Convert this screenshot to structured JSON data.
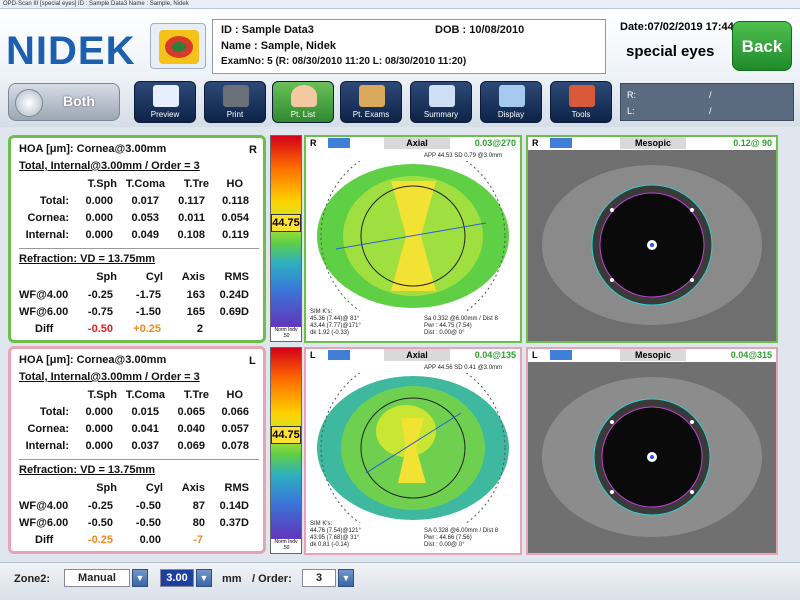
{
  "window": {
    "title": "OPD-Scan III [special eyes] ID : Sample Data3  Name : Sample, Nidek"
  },
  "header": {
    "logo": "NIDEK",
    "id": "ID : Sample Data3",
    "dob": "DOB : 10/08/2010",
    "name": "Name : Sample,  Nidek",
    "exam": "ExamNo: 5 (R: 08/30/2010 11:20  L: 08/30/2010 11:20)",
    "date": "Date:07/02/2019 17:44",
    "mode": "special eyes",
    "back_label": "Back"
  },
  "toolbar": {
    "both_label": "Both",
    "buttons": [
      "Preview",
      "Print",
      "Pt. List",
      "Pt. Exams",
      "Summary",
      "Display",
      "Tools"
    ],
    "r_label": "R:",
    "r_value": "/",
    "l_label": "L:",
    "l_value": "/"
  },
  "right_panel": {
    "title": "HOA [μm]: Cornea@3.00mm",
    "side": "R",
    "subtitle": "Total, Internal@3.00mm / Order = 3",
    "cols": [
      "T.Sph",
      "T.Coma",
      "T.Tre",
      "HO"
    ],
    "rows": [
      {
        "label": "Total:",
        "v": [
          "0.000",
          "0.017",
          "0.117",
          "0.118"
        ]
      },
      {
        "label": "Cornea:",
        "v": [
          "0.000",
          "0.053",
          "0.011",
          "0.054"
        ]
      },
      {
        "label": "Internal:",
        "v": [
          "0.000",
          "0.049",
          "0.108",
          "0.119"
        ]
      }
    ],
    "refraction": "Refraction: VD = 13.75mm",
    "rcols": [
      "Sph",
      "Cyl",
      "Axis",
      "RMS"
    ],
    "rrows": [
      {
        "label": "WF@4.00",
        "v": [
          "-0.25",
          "-1.75",
          "163",
          "0.24D"
        ]
      },
      {
        "label": "WF@6.00",
        "v": [
          "-0.75",
          "-1.50",
          "165",
          "0.69D"
        ]
      }
    ],
    "diff": {
      "label": "Diff",
      "v": [
        "-0.50",
        "+0.25",
        "2"
      ]
    }
  },
  "left_panel": {
    "title": "HOA [μm]: Cornea@3.00mm",
    "side": "L",
    "subtitle": "Total, Internal@3.00mm / Order = 3",
    "cols": [
      "T.Sph",
      "T.Coma",
      "T.Tre",
      "HO"
    ],
    "rows": [
      {
        "label": "Total:",
        "v": [
          "0.000",
          "0.015",
          "0.065",
          "0.066"
        ]
      },
      {
        "label": "Cornea:",
        "v": [
          "0.000",
          "0.041",
          "0.040",
          "0.057"
        ]
      },
      {
        "label": "Internal:",
        "v": [
          "0.000",
          "0.037",
          "0.069",
          "0.078"
        ]
      }
    ],
    "refraction": "Refraction: VD = 13.75mm",
    "rcols": [
      "Sph",
      "Cyl",
      "Axis",
      "RMS"
    ],
    "rrows": [
      {
        "label": "WF@4.00",
        "v": [
          "-0.25",
          "-0.50",
          "87",
          "0.14D"
        ]
      },
      {
        "label": "WF@6.00",
        "v": [
          "-0.50",
          "-0.50",
          "80",
          "0.37D"
        ]
      }
    ],
    "diff": {
      "label": "Diff",
      "v": [
        "-0.25",
        "0.00",
        "-7"
      ]
    }
  },
  "scale": {
    "right_value": "44.75",
    "left_value": "44.75",
    "foot": "Norm Indv .50"
  },
  "maps": {
    "r_axial": {
      "side": "R",
      "title": "Axial",
      "value": "0.03@270",
      "app": "APP 44.53 SD 0.79 @3.0mm",
      "simk1": "SIM K's:",
      "simk2": "45.36 (7.44)@ 81°",
      "simk3": "43.44 (7.77)@171°",
      "simk4": "dk 1.92 (-0.33)",
      "info1": "Sa 0.332 @6.00mm / Dist 8",
      "info2": "Pwr : 44.75 (7.54)",
      "info3": "Dist : 0.00@ 0°"
    },
    "r_mesopic": {
      "side": "R",
      "title": "Mesopic",
      "value": "0.12@ 90"
    },
    "l_axial": {
      "side": "L",
      "title": "Axial",
      "value": "0.04@135",
      "app": "APP 44.56 SD 0.41 @3.0mm",
      "simk1": "SIM K's:",
      "simk2": "44.76 (7.54)@121°",
      "simk3": "43.95 (7.68)@ 31°",
      "simk4": "dk 0.81 (-0.14)",
      "info1": "SA 0.328 @6.00mm / Dist 8",
      "info2": "Pwr : 44.66 (7.56)",
      "info3": "Dist : 0.00@ 0°"
    },
    "l_mesopic": {
      "side": "L",
      "title": "Mesopic",
      "value": "0.04@315"
    }
  },
  "footer": {
    "zone_label": "Zone2:",
    "zone_value": "Manual",
    "size_value": "3.00",
    "unit": "mm",
    "order_label": "/ Order:",
    "order_value": "3"
  },
  "colors": {
    "right_border": "#6cc04a",
    "left_border": "#e8a4b4",
    "back": "#2f9a35",
    "logo": "#1b5fae"
  }
}
